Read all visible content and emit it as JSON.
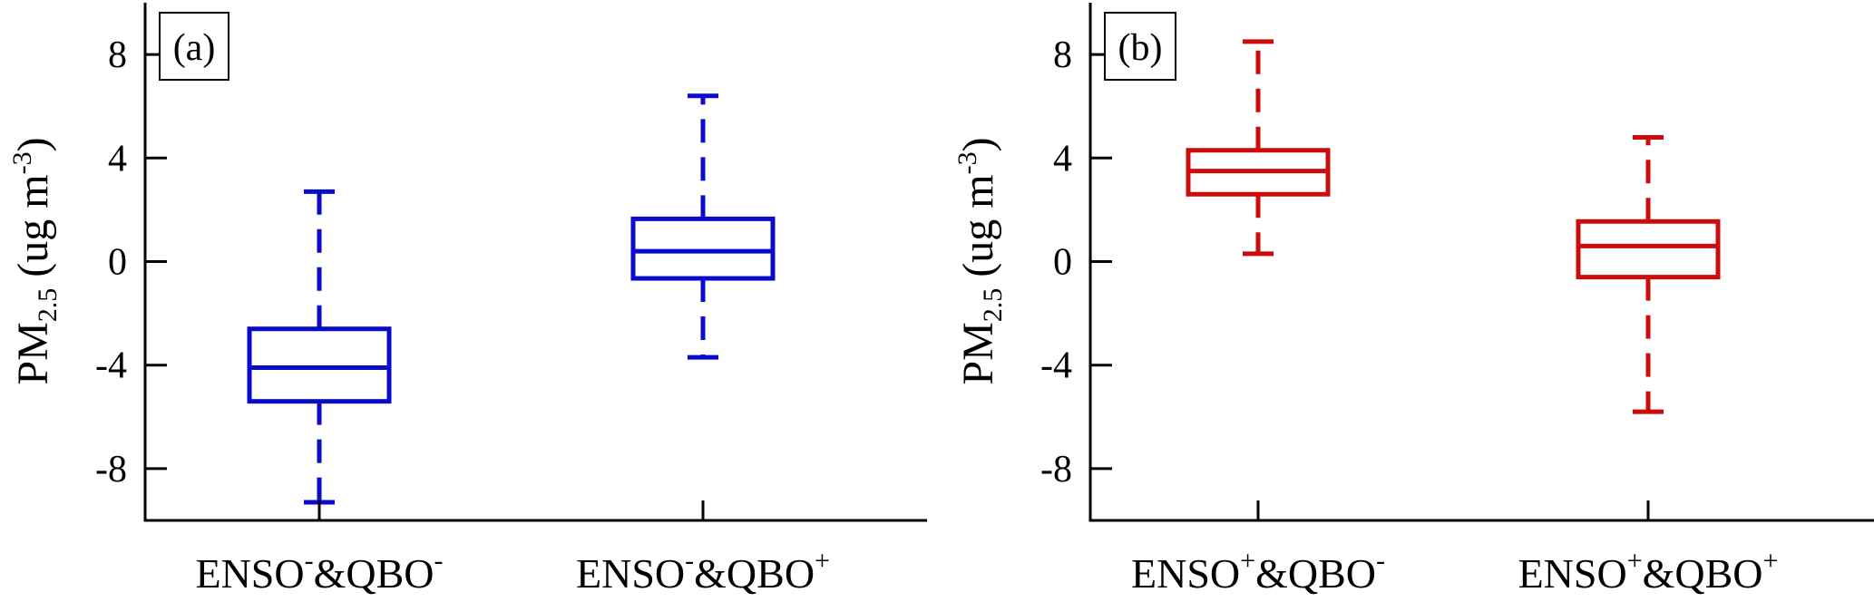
{
  "chart_data": [
    {
      "type": "box",
      "panel_label": "(a)",
      "ylabel": {
        "main": "PM",
        "sub": "2.5",
        "unit_pre": " (ug m",
        "unit_sup": "-3",
        "unit_post": ")"
      },
      "ylim": [
        -10,
        10
      ],
      "yticks": [
        -8,
        -4,
        0,
        4,
        8
      ],
      "ytick_labels": [
        "-8",
        "-4",
        "0",
        "4",
        "8"
      ],
      "color": "#0b0bcc",
      "boxes": [
        {
          "label": {
            "a": "ENSO",
            "asup": "-",
            "b": "&QBO",
            "bsup": "-"
          },
          "whisker_low": -9.3,
          "q1": -5.4,
          "median": -4.1,
          "q3": -2.6,
          "whisker_high": 2.7
        },
        {
          "label": {
            "a": "ENSO",
            "asup": "-",
            "b": "&QBO",
            "bsup": "+"
          },
          "whisker_low": -3.7,
          "q1": -0.65,
          "median": 0.4,
          "q3": 1.65,
          "whisker_high": 6.4
        }
      ]
    },
    {
      "type": "box",
      "panel_label": "(b)",
      "ylabel": {
        "main": "PM",
        "sub": "2.5",
        "unit_pre": " (ug m",
        "unit_sup": "-3",
        "unit_post": ")"
      },
      "ylim": [
        -10,
        10
      ],
      "yticks": [
        -8,
        -4,
        0,
        4,
        8
      ],
      "ytick_labels": [
        "-8",
        "-4",
        "0",
        "4",
        "8"
      ],
      "color": "#cc0b0b",
      "boxes": [
        {
          "label": {
            "a": "ENSO",
            "asup": "+",
            "b": "&QBO",
            "bsup": "-"
          },
          "whisker_low": 0.3,
          "q1": 2.6,
          "median": 3.5,
          "q3": 4.3,
          "whisker_high": 8.5
        },
        {
          "label": {
            "a": "ENSO",
            "asup": "+",
            "b": "&QBO",
            "bsup": "+"
          },
          "whisker_low": -5.8,
          "q1": -0.6,
          "median": 0.6,
          "q3": 1.55,
          "whisker_high": 4.8
        }
      ]
    }
  ]
}
